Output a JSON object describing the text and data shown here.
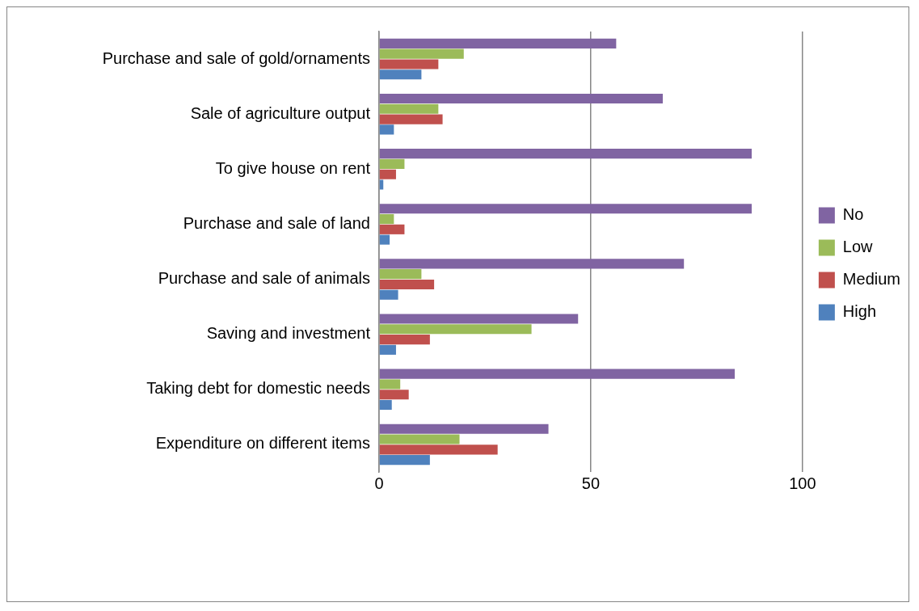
{
  "chart_data": {
    "type": "bar",
    "orientation": "horizontal",
    "categories": [
      "Purchase and sale of gold/ornaments",
      "Sale of agriculture output",
      "To give house on rent",
      "Purchase and sale of land",
      "Purchase and sale of animals",
      "Saving and investment",
      "Taking debt for domestic needs",
      "Expenditure on different items"
    ],
    "series": [
      {
        "name": "No",
        "color": "#8064a2",
        "values": [
          56,
          67,
          88,
          88,
          72,
          47,
          84,
          40
        ]
      },
      {
        "name": "Low",
        "color": "#9bbb59",
        "values": [
          20,
          14,
          6,
          3.5,
          10,
          36,
          5,
          19
        ]
      },
      {
        "name": "Medium",
        "color": "#c0504d",
        "values": [
          14,
          15,
          4,
          6,
          13,
          12,
          7,
          28
        ]
      },
      {
        "name": "High",
        "color": "#4f81bd",
        "values": [
          10,
          3.5,
          1,
          2.5,
          4.5,
          4,
          3,
          12
        ]
      }
    ],
    "xlim": [
      0,
      100
    ],
    "xticks": [
      0,
      50,
      100
    ],
    "grid": "x",
    "legend": "right"
  }
}
